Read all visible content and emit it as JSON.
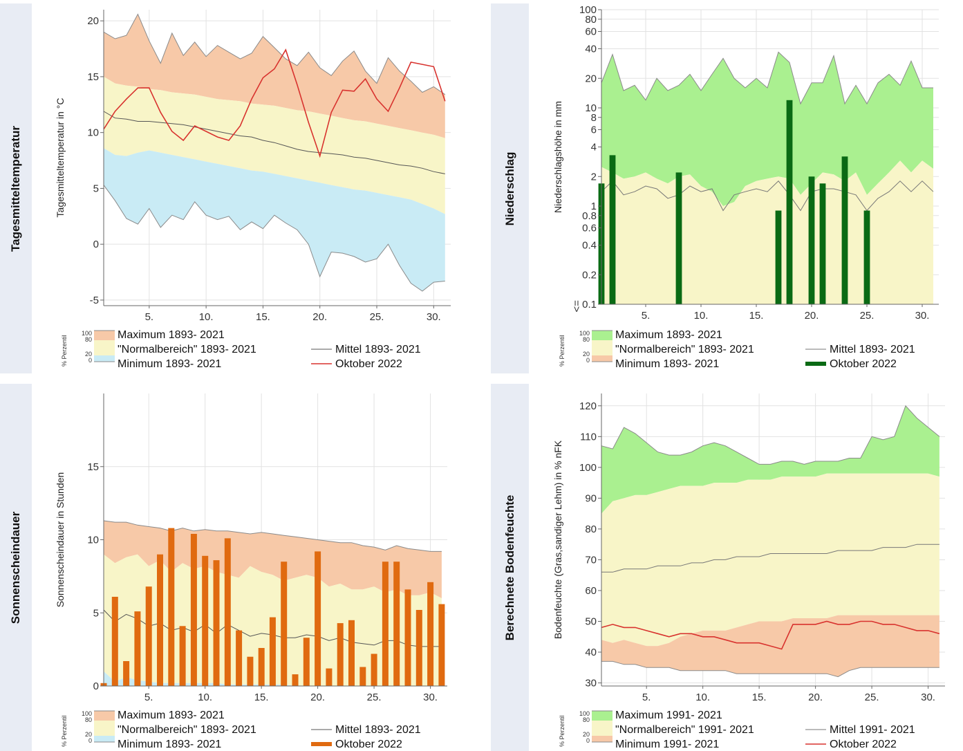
{
  "chart_data": [
    {
      "id": "temp",
      "type": "area",
      "side_title": "Tagesmitteltemperatur",
      "ylabel": "Tagesmitteltemperatur in °C",
      "xlim": [
        1,
        31.5
      ],
      "ylim": [
        -5.5,
        21
      ],
      "x_ticks": [
        "5.",
        "10.",
        "15.",
        "20.",
        "25.",
        "30."
      ],
      "y_ticks": [
        "-5",
        "0",
        "5",
        "10",
        "15",
        "20"
      ],
      "colors": {
        "max": "#f7c9a8",
        "normal": "#f8f5c8",
        "min": "#c9ebf5",
        "mean": "#555555",
        "current": "#d8322e"
      },
      "series": [
        {
          "role": "max",
          "name": "Maximum 1893- 2021",
          "values": [
            19,
            18.4,
            18.7,
            20.6,
            18.2,
            16.2,
            18.9,
            16.9,
            18.1,
            16.8,
            17.8,
            17.2,
            16.6,
            17.1,
            18.6,
            17.6,
            16.6,
            16.0,
            17.2,
            15.8,
            15.1,
            16.4,
            17.3,
            15.5,
            14.4,
            16.7,
            15.5,
            14.6,
            13.6,
            14.1,
            13.4
          ]
        },
        {
          "role": "normal_upper",
          "values": [
            15,
            14.4,
            14.2,
            14.1,
            13.9,
            13.8,
            13.6,
            13.5,
            13.4,
            13.2,
            13.0,
            12.9,
            12.8,
            12.6,
            12.5,
            12.4,
            12.2,
            12.0,
            11.9,
            11.7,
            11.5,
            11.3,
            11.1,
            11.0,
            10.8,
            10.6,
            10.4,
            10.2,
            10.0,
            9.8,
            9.5
          ]
        },
        {
          "role": "normal_lower",
          "values": [
            8.6,
            8.0,
            7.9,
            8.2,
            8.4,
            8.2,
            8.0,
            7.8,
            7.6,
            7.4,
            7.2,
            7.0,
            6.8,
            6.6,
            6.5,
            6.3,
            6.1,
            5.9,
            5.7,
            5.5,
            5.3,
            5.1,
            4.9,
            4.8,
            4.6,
            4.4,
            4.2,
            4.0,
            3.6,
            3.2,
            2.7
          ]
        },
        {
          "role": "min",
          "name": "Minimum 1893- 2021",
          "values": [
            5.3,
            3.9,
            2.3,
            1.8,
            3.2,
            1.5,
            2.6,
            2.2,
            3.8,
            2.6,
            2.2,
            2.5,
            1.3,
            2.0,
            1.4,
            2.6,
            1.9,
            1.3,
            0.0,
            -2.9,
            -0.7,
            -0.8,
            -1.1,
            -1.6,
            -1.3,
            0.0,
            -1.9,
            -3.5,
            -4.2,
            -3.4,
            -3.3
          ]
        },
        {
          "role": "mean",
          "name": "Mittel 1893- 2021",
          "values": [
            11.9,
            11.3,
            11.2,
            11.0,
            11.0,
            10.9,
            10.8,
            10.7,
            10.5,
            10.3,
            10.1,
            9.9,
            9.7,
            9.6,
            9.3,
            9.1,
            8.8,
            8.5,
            8.3,
            8.2,
            8.1,
            8.0,
            7.8,
            7.7,
            7.5,
            7.3,
            7.1,
            7.0,
            6.8,
            6.5,
            6.3
          ]
        },
        {
          "role": "current",
          "name": "Oktober 2022",
          "values": [
            10.3,
            11.9,
            13.0,
            14.0,
            14.0,
            11.8,
            10.1,
            9.3,
            10.6,
            10.1,
            9.6,
            9.3,
            10.6,
            13.0,
            14.9,
            15.7,
            17.4,
            14.3,
            10.9,
            7.9,
            11.8,
            13.8,
            13.7,
            14.8,
            13.0,
            11.9,
            14.0,
            16.3,
            16.1,
            15.9,
            12.8
          ]
        }
      ],
      "legend_header": "% Perzentil",
      "legend_ticks": [
        "100",
        "80",
        "20",
        "0"
      ],
      "legend": [
        {
          "role": "max",
          "label": "Maximum 1893- 2021"
        },
        {
          "role": "normal",
          "label": "\"Normalbereich\" 1893- 2021"
        },
        {
          "role": "min",
          "label": "Minimum 1893- 2021"
        },
        {
          "role": "mean",
          "label": "Mittel 1893- 2021"
        },
        {
          "role": "current",
          "label": "Oktober 2022"
        }
      ]
    },
    {
      "id": "rain",
      "type": "bar",
      "side_title": "Niederschlag",
      "ylabel": "Niederschlagshöhe in mm",
      "yscale": "log",
      "xlim": [
        1,
        31.5
      ],
      "ylim": [
        0.1,
        100
      ],
      "x_ticks": [
        "5.",
        "10.",
        "15.",
        "20.",
        "25.",
        "30."
      ],
      "y_ticks": [
        "0.1",
        "0.2",
        "0.4",
        "0.6",
        "0.8",
        "1",
        "2",
        "4",
        "6",
        "8",
        "10",
        "20",
        "40",
        "60",
        "80",
        "100"
      ],
      "y_bottom_label": "<=",
      "colors": {
        "max": "#aaf090",
        "normal": "#f8f5c8",
        "min": "#f7c9a8",
        "mean": "#777777",
        "current": "#0a6a14"
      },
      "series": [
        {
          "role": "max",
          "name": "Maximum 1893- 2021",
          "values": [
            18,
            35,
            15,
            17,
            12,
            20,
            15,
            17,
            22,
            15,
            22,
            32,
            20,
            16,
            20,
            16,
            37,
            29,
            11,
            18,
            18,
            34,
            11,
            17,
            11,
            18,
            22,
            17,
            30,
            16,
            16
          ]
        },
        {
          "role": "normal_upper",
          "values": [
            2.5,
            2.2,
            1.9,
            2.0,
            2.2,
            1.9,
            1.7,
            2.0,
            2.1,
            1.6,
            1.4,
            1.0,
            1.1,
            1.6,
            1.8,
            1.9,
            2.0,
            1.9,
            1.3,
            1.7,
            2.2,
            2.1,
            1.8,
            2.2,
            1.3,
            1.7,
            2.2,
            2.9,
            2.2,
            2.9,
            2.4
          ]
        },
        {
          "role": "mean",
          "name": "Mittel 1893- 2021",
          "values": [
            1.4,
            1.8,
            1.3,
            1.4,
            1.6,
            1.5,
            1.2,
            1.3,
            1.6,
            1.4,
            1.5,
            0.9,
            1.3,
            1.4,
            1.5,
            1.4,
            1.8,
            1.3,
            0.9,
            1.4,
            1.5,
            1.5,
            1.4,
            1.3,
            0.9,
            1.2,
            1.4,
            1.8,
            1.4,
            1.8,
            1.4
          ]
        },
        {
          "role": "current",
          "name": "Oktober 2022",
          "values": [
            1.7,
            3.3,
            0,
            0,
            0,
            0,
            0,
            2.2,
            0,
            0,
            0,
            0,
            0,
            0,
            0,
            0,
            0.9,
            12,
            0,
            2.0,
            1.7,
            0,
            3.2,
            0,
            0.9,
            0,
            0,
            0,
            0,
            0,
            0
          ]
        }
      ],
      "legend_header": "% Perzentil",
      "legend_ticks": [
        "100",
        "80",
        "20",
        "0"
      ],
      "legend": [
        {
          "role": "max",
          "label": "Maximum 1893- 2021"
        },
        {
          "role": "normal",
          "label": "\"Normalbereich\" 1893- 2021"
        },
        {
          "role": "min",
          "label": "Minimum 1893- 2021"
        },
        {
          "role": "mean",
          "label": "Mittel 1893- 2021"
        },
        {
          "role": "current",
          "label": "Oktober 2022"
        }
      ]
    },
    {
      "id": "sun",
      "type": "bar",
      "side_title": "Sonnenscheindauer",
      "ylabel": "Sonnenscheindauer in Stunden",
      "xlim": [
        1,
        31.5
      ],
      "ylim": [
        0,
        20
      ],
      "x_ticks": [
        "5.",
        "10.",
        "15.",
        "20.",
        "25.",
        "30."
      ],
      "y_ticks": [
        "0",
        "5",
        "10",
        "15"
      ],
      "colors": {
        "max": "#f7c9a8",
        "normal": "#f8f5c8",
        "min": "#c9ebf5",
        "mean": "#555555",
        "current": "#e06a10"
      },
      "series": [
        {
          "role": "max",
          "name": "Maximum 1893- 2021",
          "values": [
            11.3,
            11.2,
            11.2,
            11.0,
            10.9,
            10.8,
            10.6,
            10.8,
            10.6,
            10.7,
            10.6,
            10.6,
            10.5,
            10.4,
            10.5,
            10.4,
            10.3,
            10.2,
            10.1,
            10.0,
            9.9,
            9.8,
            9.8,
            9.6,
            9.5,
            9.3,
            9.6,
            9.4,
            9.3,
            9.2,
            9.2
          ]
        },
        {
          "role": "normal_upper",
          "values": [
            9.0,
            8.4,
            8.8,
            9.0,
            8.2,
            8.6,
            7.8,
            8.4,
            8.0,
            8.2,
            7.8,
            7.6,
            7.4,
            8.2,
            7.8,
            7.6,
            7.2,
            7.4,
            7.6,
            7.4,
            6.8,
            7.0,
            6.6,
            6.6,
            6.8,
            6.4,
            6.6,
            6.2,
            6.2,
            6.4,
            6.0
          ]
        },
        {
          "role": "min",
          "name": "Minimum 1893- 2021",
          "values": [
            1.0,
            0.3,
            0.6,
            0.4,
            0.3,
            0.2,
            0.2,
            0.2,
            0.2,
            0.2,
            0.2,
            0.1,
            0.1,
            0.1,
            0.1,
            0.1,
            0.1,
            0.0,
            0.0,
            0.0,
            0.0,
            0.0,
            0.0,
            0.0,
            0.0,
            0.0,
            0.0,
            0.0,
            0.0,
            0.0,
            0.0
          ]
        },
        {
          "role": "mean",
          "name": "Mittel 1893- 2021",
          "values": [
            5.2,
            4.4,
            4.9,
            4.6,
            4.1,
            4.3,
            3.8,
            4.0,
            3.7,
            4.2,
            3.6,
            4.2,
            3.8,
            3.4,
            3.6,
            3.5,
            3.3,
            3.3,
            3.5,
            3.4,
            3.1,
            3.3,
            3.0,
            2.9,
            2.8,
            3.1,
            3.1,
            2.8,
            2.7,
            2.7,
            2.7
          ]
        },
        {
          "role": "current",
          "name": "Oktober 2022",
          "values": [
            0.2,
            6.1,
            1.7,
            5.1,
            6.8,
            9.0,
            10.8,
            4.1,
            10.4,
            8.9,
            8.6,
            10.1,
            3.8,
            2.0,
            2.6,
            4.7,
            8.5,
            0.8,
            3.3,
            9.2,
            1.2,
            4.3,
            4.5,
            1.3,
            2.2,
            8.5,
            8.5,
            6.6,
            5.2,
            7.1,
            5.6
          ]
        }
      ],
      "legend_header": "% Perzentil",
      "legend_ticks": [
        "100",
        "80",
        "20",
        "0"
      ],
      "legend": [
        {
          "role": "max",
          "label": "Maximum 1893- 2021"
        },
        {
          "role": "normal",
          "label": "\"Normalbereich\" 1893- 2021"
        },
        {
          "role": "min",
          "label": "Minimum 1893- 2021"
        },
        {
          "role": "mean",
          "label": "Mittel 1893- 2021"
        },
        {
          "role": "current",
          "label": "Oktober 2022"
        }
      ]
    },
    {
      "id": "soil",
      "type": "area",
      "side_title": "Berechnete Bodenfeuchte",
      "ylabel": "Bodenfeuchte (Gras,sandiger Lehm) in % nFK",
      "xlim": [
        1,
        31.5
      ],
      "ylim": [
        29,
        124
      ],
      "x_ticks": [
        "5.",
        "10.",
        "15.",
        "20.",
        "25.",
        "30."
      ],
      "y_ticks": [
        "30",
        "40",
        "50",
        "60",
        "70",
        "80",
        "90",
        "100",
        "110",
        "120"
      ],
      "colors": {
        "max": "#aaf090",
        "normal": "#f8f5c8",
        "min": "#f7c9a8",
        "mean": "#777777",
        "current": "#d8322e"
      },
      "series": [
        {
          "role": "max",
          "name": "Maximum 1991- 2021",
          "values": [
            107,
            106,
            113,
            111,
            108,
            105,
            104,
            104,
            105,
            107,
            108,
            107,
            105,
            103,
            101,
            101,
            102,
            102,
            101,
            102,
            102,
            102,
            103,
            103,
            110,
            109,
            110,
            120,
            116,
            113,
            110
          ]
        },
        {
          "role": "normal_upper",
          "values": [
            85,
            89,
            90,
            91,
            91,
            92,
            93,
            94,
            94,
            94,
            95,
            95,
            95,
            96,
            96,
            96,
            97,
            97,
            97,
            97,
            98,
            98,
            98,
            98,
            98,
            98,
            98,
            98,
            98,
            98,
            97
          ]
        },
        {
          "role": "normal_lower",
          "values": [
            44,
            43,
            44,
            43,
            42,
            42,
            43,
            45,
            46,
            47,
            47,
            47,
            48,
            49,
            50,
            50,
            50,
            51,
            51,
            51,
            51,
            52,
            52,
            52,
            52,
            52,
            52,
            52,
            52,
            52,
            52
          ]
        },
        {
          "role": "min",
          "name": "Minimum 1991- 2021",
          "values": [
            37,
            37,
            36,
            36,
            35,
            35,
            35,
            34,
            34,
            34,
            34,
            34,
            33,
            33,
            33,
            33,
            33,
            33,
            33,
            33,
            33,
            32,
            34,
            35,
            35,
            35,
            35,
            35,
            35,
            35,
            35
          ]
        },
        {
          "role": "mean",
          "name": "Mittel 1991- 2021",
          "values": [
            66,
            66,
            67,
            67,
            67,
            68,
            68,
            68,
            69,
            69,
            70,
            70,
            71,
            71,
            71,
            72,
            72,
            72,
            72,
            72,
            72,
            73,
            73,
            73,
            73,
            74,
            74,
            74,
            75,
            75,
            75
          ]
        },
        {
          "role": "current",
          "name": "Oktober 2022",
          "values": [
            48,
            49,
            48,
            48,
            47,
            46,
            45,
            46,
            46,
            45,
            45,
            44,
            43,
            43,
            43,
            42,
            41,
            49,
            49,
            49,
            50,
            49,
            49,
            50,
            50,
            49,
            49,
            48,
            47,
            47,
            46
          ]
        }
      ],
      "legend_header": "% Perzentil",
      "legend_ticks": [
        "100",
        "80",
        "20",
        "0"
      ],
      "legend": [
        {
          "role": "max",
          "label": "Maximum 1991- 2021"
        },
        {
          "role": "normal",
          "label": "\"Normalbereich\" 1991- 2021"
        },
        {
          "role": "min",
          "label": "Minimum 1991- 2021"
        },
        {
          "role": "mean",
          "label": "Mittel 1991- 2021"
        },
        {
          "role": "current",
          "label": "Oktober 2022"
        }
      ]
    }
  ]
}
